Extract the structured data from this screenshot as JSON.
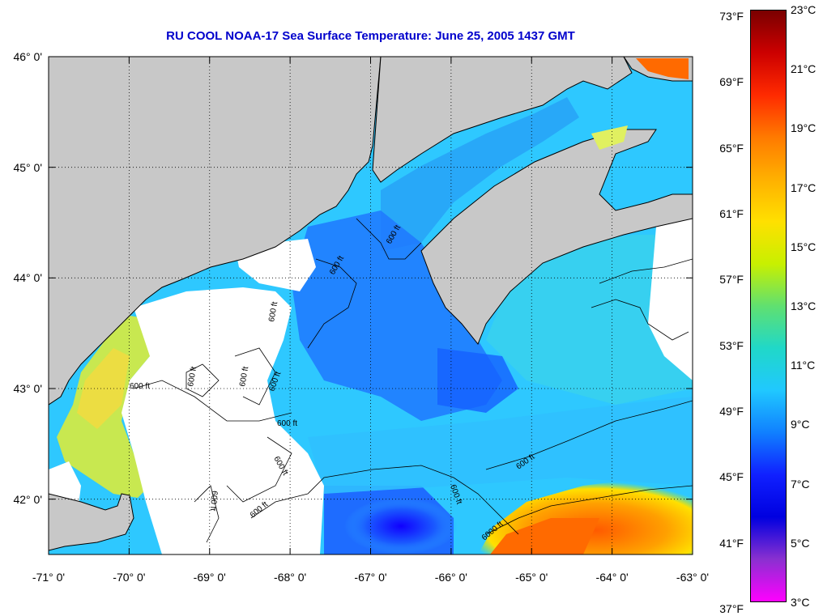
{
  "title": "RU COOL  NOAA-17  Sea Surface Temperature:  June 25, 2005 1437 GMT",
  "map": {
    "lon_range": [
      -71,
      -63
    ],
    "lat_range": [
      41.5,
      46
    ],
    "latitude_labels": [
      "46° 0'",
      "45° 0'",
      "44° 0'",
      "43° 0'",
      "42° 0'"
    ],
    "latitude_values": [
      46,
      45,
      44,
      43,
      42
    ],
    "longitude_labels": [
      "-71° 0'",
      "-70° 0'",
      "-69° 0'",
      "-68° 0'",
      "-67° 0'",
      "-66° 0'",
      "-65° 0'",
      "-64° 0'",
      "-63° 0'"
    ],
    "longitude_values": [
      -71,
      -70,
      -69,
      -68,
      -67,
      -66,
      -65,
      -64,
      -63
    ],
    "grid": "dotted",
    "colors": {
      "land": "#c8c8c8",
      "no_data": "#ffffff",
      "coastline": "#000000",
      "cold_water": "#1a6bff",
      "mid_water": "#2ec8ff",
      "warm_water": "#ffcc00",
      "hot_water": "#ff6a00"
    },
    "contour_labels": [
      "600 ft",
      "600 ft",
      "600 ft",
      "600 ft",
      "600 ft",
      "600 ft",
      "600 ft",
      "600 ft",
      "600 ft",
      "600 ft",
      "600 ft",
      "600 ft",
      "600 ft",
      "6000 ft"
    ]
  },
  "colorbar": {
    "fahrenheit_labels": [
      "73°F",
      "69°F",
      "65°F",
      "61°F",
      "57°F",
      "53°F",
      "49°F",
      "45°F",
      "41°F",
      "37°F"
    ],
    "fahrenheit_values": [
      73,
      69,
      65,
      61,
      57,
      53,
      49,
      45,
      41,
      37
    ],
    "celsius_labels": [
      "23°C",
      "21°C",
      "19°C",
      "17°C",
      "15°C",
      "13°C",
      "11°C",
      "9°C",
      "7°C",
      "5°C",
      "3°C"
    ],
    "celsius_values": [
      23,
      21,
      19,
      17,
      15,
      13,
      11,
      9,
      7,
      5,
      3
    ],
    "range_celsius": [
      3,
      23
    ],
    "gradient_stops": [
      "#7a0000",
      "#cc0000",
      "#ff2a00",
      "#ff7a00",
      "#ffb000",
      "#ffe000",
      "#c8f000",
      "#60e070",
      "#20d8c8",
      "#20c8ff",
      "#1080ff",
      "#1020ff",
      "#0000e0",
      "#8a30d0",
      "#ff00ff"
    ]
  }
}
